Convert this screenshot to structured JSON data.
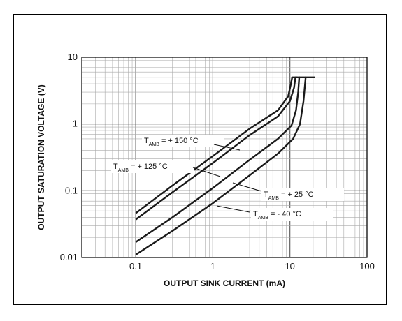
{
  "chart_data": {
    "type": "line",
    "xlabel": "OUTPUT SINK CURRENT (mA)",
    "ylabel": "OUTPUT SATURATION VOLTAGE (V)",
    "x_scale": "log",
    "y_scale": "log",
    "xlim": [
      0.02,
      100
    ],
    "ylim": [
      0.01,
      10
    ],
    "grid": true,
    "x_tick_labels": [
      "0.1",
      "1",
      "10",
      "100"
    ],
    "x_tick_values": [
      0.1,
      1,
      10,
      100
    ],
    "y_tick_labels": [
      "0.01",
      "0.1",
      "1",
      "10"
    ],
    "y_tick_values": [
      0.01,
      0.1,
      1,
      10
    ],
    "series": [
      {
        "name_main": "T",
        "name_sub": "AMB",
        "name_rest": " = + 150 °C",
        "x": [
          0.1,
          0.3,
          1,
          3,
          7,
          9.5,
          10.3,
          10.7,
          10.7,
          12.5
        ],
        "y": [
          0.046,
          0.12,
          0.33,
          0.85,
          1.6,
          2.6,
          4.0,
          5.0,
          5.0,
          5.0
        ]
      },
      {
        "name_main": "T",
        "name_sub": "AMB",
        "name_rest": " = + 125 °C",
        "x": [
          0.1,
          0.3,
          1,
          3,
          7,
          10,
          11.3,
          11.8,
          11.8,
          13.5
        ],
        "y": [
          0.037,
          0.095,
          0.26,
          0.68,
          1.3,
          2.2,
          3.5,
          5.0,
          5.0,
          5.0
        ]
      },
      {
        "name_main": "T",
        "name_sub": "AMB",
        "name_rest": " = + 25 °C",
        "x": [
          0.1,
          0.3,
          1,
          3,
          7,
          10.5,
          12,
          12.8,
          13.2,
          13.2,
          16
        ],
        "y": [
          0.017,
          0.04,
          0.11,
          0.29,
          0.6,
          0.95,
          1.6,
          3.0,
          5.0,
          5.0,
          5.0
        ]
      },
      {
        "name_main": "T",
        "name_sub": "AMB",
        "name_rest": " = - 40 °C",
        "x": [
          0.1,
          0.3,
          1,
          3,
          7,
          11,
          13.5,
          15,
          16,
          16,
          21
        ],
        "y": [
          0.011,
          0.025,
          0.065,
          0.17,
          0.36,
          0.6,
          1.0,
          2.2,
          5.0,
          5.0,
          5.0
        ]
      }
    ]
  }
}
